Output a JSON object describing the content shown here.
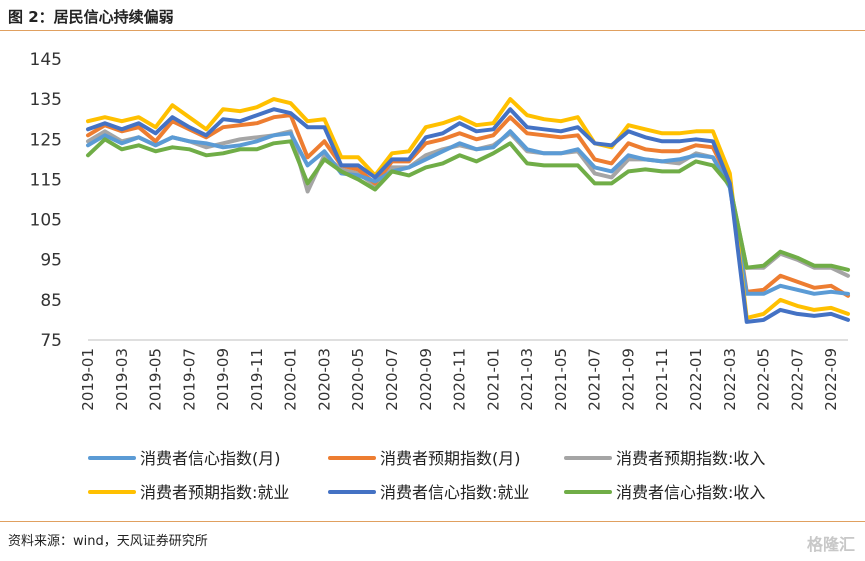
{
  "header": {
    "title": "图 2：居民信心持续偏弱"
  },
  "footer": {
    "source": "资料来源：wind，天风证券研究所",
    "watermark": "格隆汇"
  },
  "chart_data": {
    "type": "line",
    "title": "",
    "xlabel": "",
    "ylabel": "",
    "ylim": [
      75,
      145
    ],
    "yticks": [
      75,
      85,
      95,
      105,
      115,
      125,
      135,
      145
    ],
    "grid": false,
    "legend_position": "bottom",
    "x": [
      "2019-01",
      "2019-02",
      "2019-03",
      "2019-04",
      "2019-05",
      "2019-06",
      "2019-07",
      "2019-08",
      "2019-09",
      "2019-10",
      "2019-11",
      "2019-12",
      "2020-01",
      "2020-02",
      "2020-03",
      "2020-04",
      "2020-05",
      "2020-06",
      "2020-07",
      "2020-08",
      "2020-09",
      "2020-10",
      "2020-11",
      "2020-12",
      "2021-01",
      "2021-02",
      "2021-03",
      "2021-04",
      "2021-05",
      "2021-06",
      "2021-07",
      "2021-08",
      "2021-09",
      "2021-10",
      "2021-11",
      "2021-12",
      "2022-01",
      "2022-02",
      "2022-03",
      "2022-04",
      "2022-05",
      "2022-06",
      "2022-07",
      "2022-08",
      "2022-09",
      "2022-10"
    ],
    "xtick_labels": [
      "2019-01",
      "2019-03",
      "2019-05",
      "2019-07",
      "2019-09",
      "2019-11",
      "2020-01",
      "2020-03",
      "2020-05",
      "2020-07",
      "2020-09",
      "2020-11",
      "2021-01",
      "2021-03",
      "2021-05",
      "2021-07",
      "2021-09",
      "2021-11",
      "2022-01",
      "2022-03",
      "2022-05",
      "2022-07",
      "2022-09"
    ],
    "series": [
      {
        "name": "消费者信心指数(月)",
        "color": "#5b9bd5",
        "values": [
          123.5,
          126.0,
          124.0,
          125.5,
          123.5,
          125.5,
          124.5,
          124.0,
          123.0,
          123.5,
          124.5,
          126.0,
          126.5,
          118.5,
          122.0,
          116.5,
          116.0,
          114.5,
          117.0,
          118.0,
          120.0,
          122.0,
          124.0,
          122.5,
          123.0,
          127.0,
          122.5,
          121.5,
          121.5,
          122.5,
          118.0,
          117.0,
          121.0,
          120.0,
          119.5,
          120.0,
          121.0,
          120.5,
          113.0,
          86.5,
          86.5,
          88.5,
          87.5,
          86.5,
          87.0,
          86.5
        ]
      },
      {
        "name": "消费者预期指数(月)",
        "color": "#ed7d31",
        "values": [
          126.0,
          128.5,
          127.0,
          128.0,
          124.5,
          129.5,
          127.5,
          125.5,
          128.0,
          128.5,
          129.0,
          130.5,
          131.0,
          120.5,
          124.5,
          118.5,
          117.5,
          114.0,
          119.5,
          119.5,
          124.0,
          125.0,
          126.5,
          125.0,
          126.0,
          130.5,
          126.5,
          126.0,
          125.5,
          126.0,
          120.0,
          119.0,
          124.0,
          122.5,
          122.0,
          122.0,
          123.5,
          123.0,
          114.5,
          87.0,
          87.5,
          91.0,
          89.5,
          88.0,
          88.5,
          86.0
        ]
      },
      {
        "name": "消费者预期指数:收入",
        "color": "#a5a5a5",
        "values": [
          124.5,
          127.0,
          124.5,
          125.5,
          123.5,
          125.5,
          124.5,
          123.0,
          124.0,
          125.0,
          125.5,
          126.0,
          127.0,
          112.0,
          121.0,
          117.5,
          116.5,
          113.5,
          118.0,
          118.0,
          121.0,
          122.5,
          123.5,
          122.5,
          123.5,
          126.5,
          122.0,
          121.5,
          121.5,
          122.0,
          116.5,
          115.5,
          120.0,
          120.0,
          119.5,
          119.0,
          121.5,
          120.5,
          113.5,
          93.0,
          93.0,
          96.5,
          95.0,
          93.0,
          93.0,
          91.0
        ]
      },
      {
        "name": "消费者预期指数:就业",
        "color": "#ffc000",
        "values": [
          129.5,
          130.5,
          129.5,
          130.5,
          128.0,
          133.5,
          130.5,
          127.5,
          132.5,
          132.0,
          133.0,
          135.0,
          134.0,
          129.5,
          130.0,
          120.5,
          120.5,
          116.0,
          121.5,
          122.0,
          128.0,
          129.0,
          130.5,
          128.5,
          129.0,
          135.0,
          131.0,
          130.0,
          129.5,
          130.5,
          124.0,
          123.0,
          128.5,
          127.5,
          126.5,
          126.5,
          127.0,
          127.0,
          116.5,
          80.5,
          81.5,
          85.0,
          83.5,
          82.5,
          83.0,
          81.5
        ]
      },
      {
        "name": "消费者信心指数:就业",
        "color": "#4472c4",
        "values": [
          127.5,
          129.0,
          127.5,
          129.0,
          126.5,
          130.5,
          128.0,
          126.0,
          130.0,
          129.5,
          131.0,
          132.5,
          131.5,
          128.0,
          128.0,
          118.5,
          118.5,
          115.5,
          120.0,
          120.0,
          125.5,
          126.5,
          129.0,
          127.0,
          127.5,
          132.5,
          128.0,
          127.5,
          127.0,
          128.0,
          124.0,
          123.5,
          127.0,
          125.5,
          124.5,
          124.5,
          125.0,
          124.5,
          114.0,
          79.5,
          80.0,
          82.5,
          81.5,
          81.0,
          81.5,
          80.0
        ]
      },
      {
        "name": "消费者信心指数:收入",
        "color": "#70ad47",
        "values": [
          121.0,
          125.0,
          122.5,
          123.5,
          122.0,
          123.0,
          122.5,
          121.0,
          121.5,
          122.5,
          122.5,
          124.0,
          124.5,
          114.0,
          120.0,
          117.0,
          115.0,
          112.5,
          117.0,
          116.0,
          118.0,
          119.0,
          121.0,
          119.5,
          121.5,
          124.0,
          119.0,
          118.5,
          118.5,
          118.5,
          114.0,
          114.0,
          117.0,
          117.5,
          117.0,
          117.0,
          119.5,
          118.5,
          113.5,
          93.0,
          93.5,
          97.0,
          95.5,
          93.5,
          93.5,
          92.5
        ]
      }
    ]
  }
}
